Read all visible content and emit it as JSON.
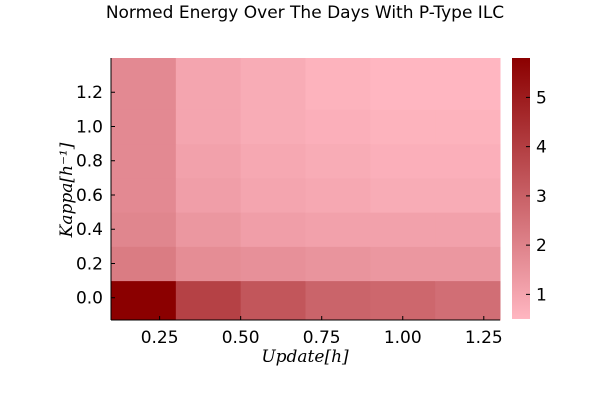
{
  "chart_data": {
    "type": "heatmap",
    "title": "Normed Energy Over The Days With P-Type ILC",
    "xlabel": "Update[h]",
    "ylabel": "Kappa[h⁻¹]",
    "x": [
      0.2,
      0.4,
      0.6,
      0.8,
      1.0,
      1.2
    ],
    "y": [
      0.0,
      0.2,
      0.4,
      0.6,
      0.8,
      1.0,
      1.2
    ],
    "x_ticks": [
      "0.25",
      "0.50",
      "0.75",
      "1.00",
      "1.25"
    ],
    "x_tick_values": [
      0.25,
      0.5,
      0.75,
      1.0,
      1.25
    ],
    "y_ticks": [
      "0.0",
      "0.2",
      "0.4",
      "0.6",
      "0.8",
      "1.0",
      "1.2"
    ],
    "y_tick_values": [
      0.0,
      0.2,
      0.4,
      0.6,
      0.8,
      1.0,
      1.2
    ],
    "xlim": [
      0.1,
      1.3
    ],
    "ylim": [
      -0.13,
      1.4
    ],
    "z": [
      [
        5.8,
        3.9,
        3.3,
        2.9,
        2.8,
        2.6
      ],
      [
        2.2,
        1.7,
        1.6,
        1.5,
        1.4,
        1.4
      ],
      [
        1.9,
        1.4,
        1.2,
        1.1,
        1.1,
        1.1
      ],
      [
        1.8,
        1.2,
        1.0,
        0.9,
        0.8,
        0.8
      ],
      [
        1.8,
        1.1,
        0.9,
        0.8,
        0.7,
        0.7
      ],
      [
        1.8,
        1.0,
        0.8,
        0.7,
        0.6,
        0.6
      ],
      [
        1.8,
        1.0,
        0.8,
        0.6,
        0.5,
        0.5
      ]
    ],
    "colorbar": {
      "min": 0.5,
      "max": 5.8,
      "ticks": [
        "1",
        "2",
        "3",
        "4",
        "5"
      ],
      "tick_values": [
        1,
        2,
        3,
        4,
        5
      ],
      "color_low": "#ffb6c1",
      "color_high": "#8b0000"
    },
    "grid": false
  }
}
